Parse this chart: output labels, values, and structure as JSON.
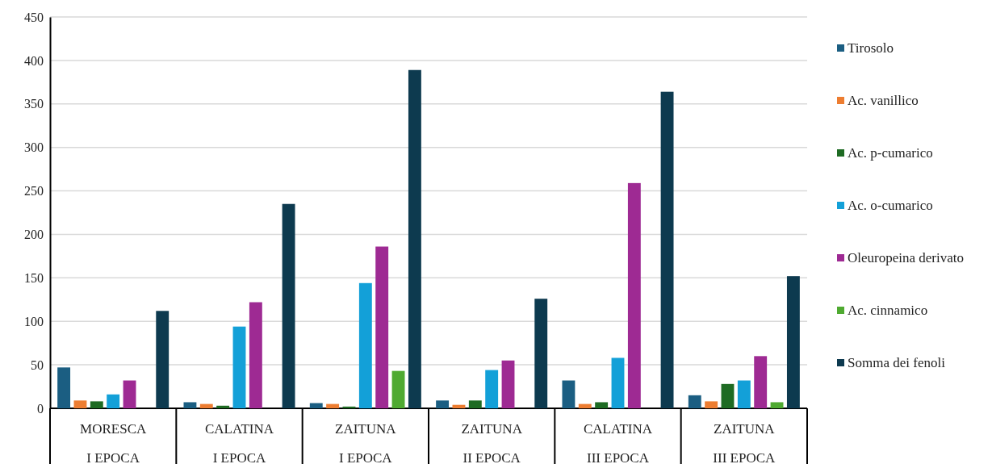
{
  "chart_data": {
    "type": "bar",
    "categories": [
      "MORESCA\nI EPOCA",
      "CALATINA\nI EPOCA",
      "ZAITUNA\nI EPOCA",
      "ZAITUNA\nII EPOCA",
      "CALATINA\nIII EPOCA",
      "ZAITUNA\nIII EPOCA"
    ],
    "series": [
      {
        "name": "Tirosolo",
        "color": "#1b5e82",
        "values": [
          47,
          7,
          6,
          9,
          32,
          15
        ]
      },
      {
        "name": "Ac. vanillico",
        "color": "#ed7d31",
        "values": [
          9,
          5,
          5,
          4,
          5,
          8
        ]
      },
      {
        "name": "Ac. p-cumarico",
        "color": "#1e6b23",
        "values": [
          8,
          3,
          2,
          9,
          7,
          28
        ]
      },
      {
        "name": "Ac. o-cumarico",
        "color": "#13a0d8",
        "values": [
          16,
          94,
          144,
          44,
          58,
          32
        ]
      },
      {
        "name": "Oleuropeina derivato",
        "color": "#9e2a93",
        "values": [
          32,
          122,
          186,
          55,
          259,
          60
        ]
      },
      {
        "name": "Ac. cinnamico",
        "color": "#4faa31",
        "values": [
          null,
          null,
          43,
          null,
          null,
          7
        ]
      },
      {
        "name": "Somma dei fenoli",
        "color": "#0d3a4f",
        "values": [
          112,
          235,
          389,
          126,
          364,
          152
        ]
      }
    ],
    "ylim": [
      0,
      450
    ],
    "yticks": [
      0,
      50,
      100,
      150,
      200,
      250,
      300,
      350,
      400,
      450
    ],
    "grid": "y",
    "legend": "right"
  }
}
